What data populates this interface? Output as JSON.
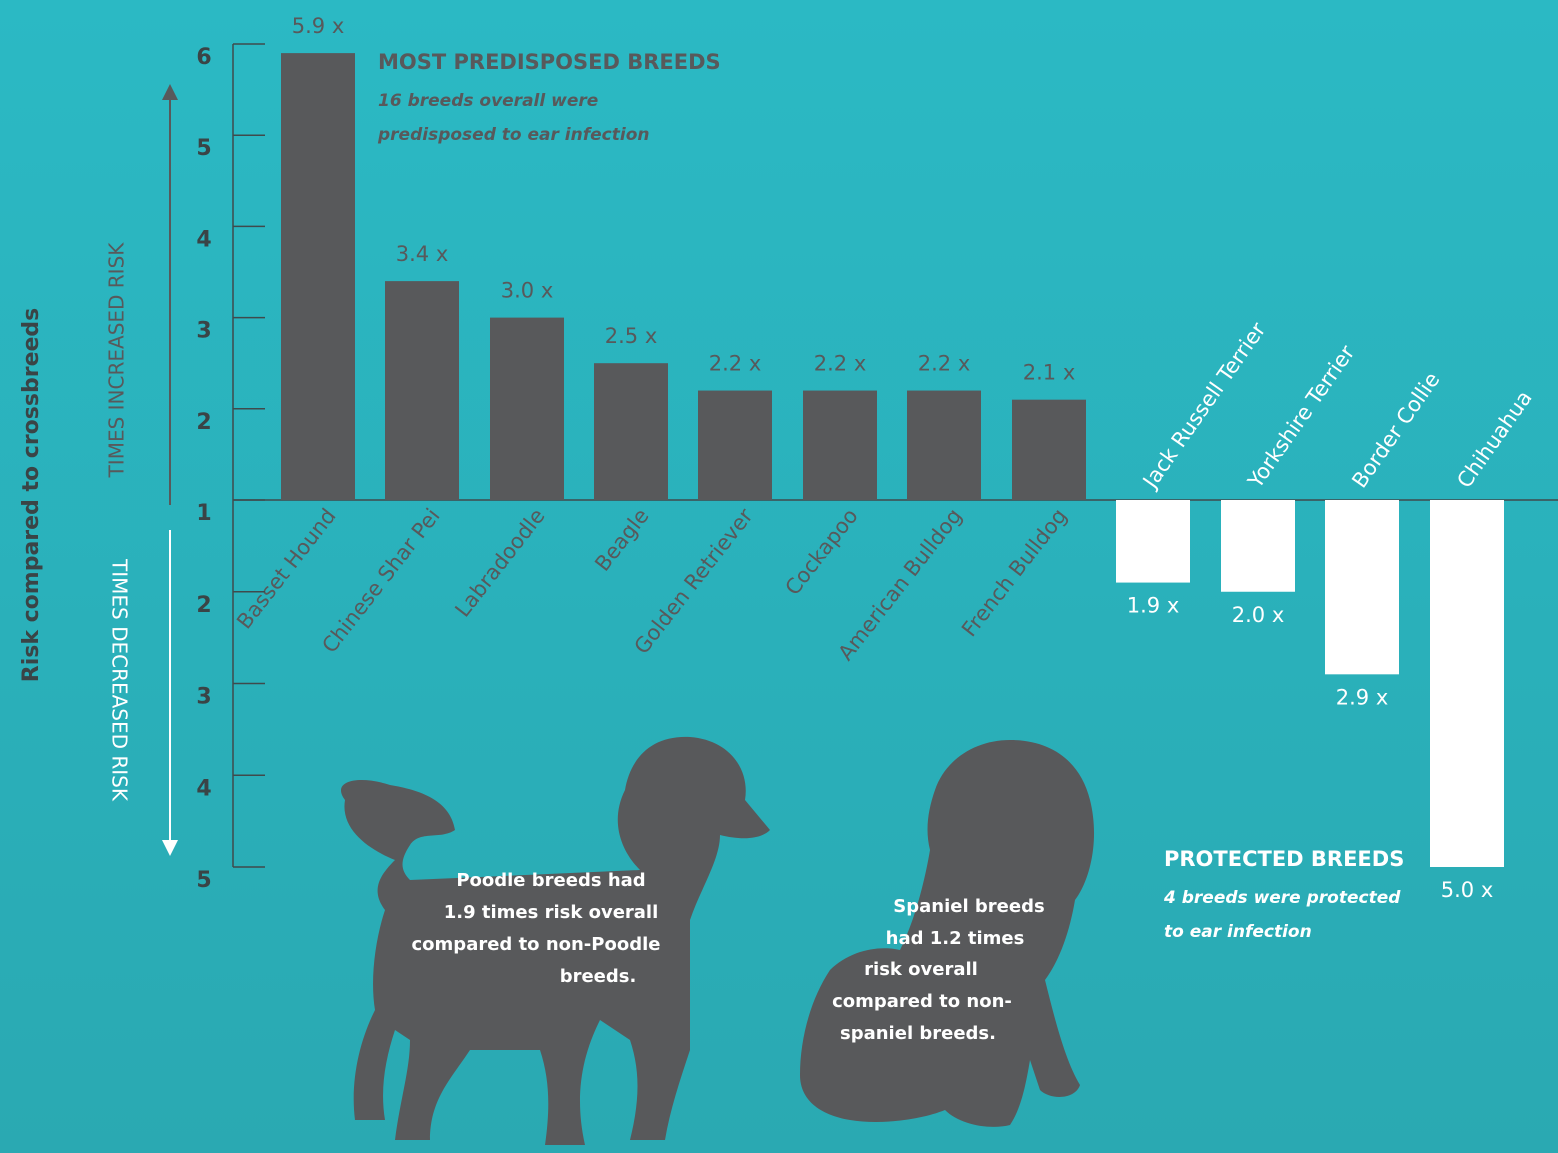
{
  "chart_data": [
    {
      "type": "bar",
      "direction": "up",
      "title": "MOST PREDISPOSED BREEDS",
      "subtitle": [
        "16 breeds overall were",
        "predisposed to ear infection"
      ],
      "ylabel": "Risk compared to crossbreeds",
      "axis_label": "TIMES INCREASED RISK",
      "categories": [
        "Basset Hound",
        "Chinese Shar Pei",
        "Labradoodle",
        "Beagle",
        "Golden Retriever",
        "Cockapoo",
        "American Bulldog",
        "French Bulldog"
      ],
      "values": [
        5.9,
        3.4,
        3.0,
        2.5,
        2.2,
        2.2,
        2.2,
        2.1
      ],
      "value_labels": [
        "5.9 x",
        "3.4 x",
        "3.0 x",
        "2.5 x",
        "2.2 x",
        "2.2 x",
        "2.2 x",
        "2.1 x"
      ],
      "color": "#58595b",
      "ylim": [
        1,
        6
      ],
      "yticks": [
        1,
        2,
        3,
        4,
        5,
        6
      ],
      "annotations": [
        {
          "lines": [
            "Poodle breeds had",
            "1.9 times risk overall",
            "compared to non-Poodle",
            "breeds."
          ]
        },
        {
          "lines": [
            "Spaniel breeds",
            "had 1.2 times",
            "risk overall",
            "compared to non-",
            "spaniel breeds."
          ]
        }
      ]
    },
    {
      "type": "bar",
      "direction": "down",
      "title": "PROTECTED BREEDS",
      "subtitle": [
        "4 breeds were protected",
        "to ear infection"
      ],
      "axis_label": "TIMES DECREASED RISK",
      "categories": [
        "Jack Russell Terrier",
        "Yorkshire Terrier",
        "Border Collie",
        "Chihuahua"
      ],
      "values": [
        1.9,
        2.0,
        2.9,
        5.0
      ],
      "value_labels": [
        "1.9 x",
        "2.0 x",
        "2.9 x",
        "5.0 x"
      ],
      "color": "#ffffff",
      "ylim": [
        1,
        5
      ],
      "yticks": [
        2,
        3,
        4,
        5
      ]
    }
  ]
}
